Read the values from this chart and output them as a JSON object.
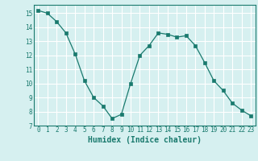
{
  "x": [
    0,
    1,
    2,
    3,
    4,
    5,
    6,
    7,
    8,
    9,
    10,
    11,
    12,
    13,
    14,
    15,
    16,
    17,
    18,
    19,
    20,
    21,
    22,
    23
  ],
  "y": [
    15.2,
    15.0,
    14.4,
    13.6,
    12.1,
    10.2,
    9.0,
    8.4,
    7.5,
    7.8,
    10.0,
    12.0,
    12.7,
    13.6,
    13.5,
    13.3,
    13.4,
    12.7,
    11.5,
    10.2,
    9.5,
    8.6,
    8.1,
    7.7
  ],
  "line_color": "#1a7a6e",
  "marker": "s",
  "marker_size": 2.2,
  "bg_color": "#d6f0f0",
  "grid_color": "#ffffff",
  "xlabel": "Humidex (Indice chaleur)",
  "xlim": [
    -0.5,
    23.5
  ],
  "ylim": [
    7,
    15.6
  ],
  "yticks": [
    7,
    8,
    9,
    10,
    11,
    12,
    13,
    14,
    15
  ],
  "xticks": [
    0,
    1,
    2,
    3,
    4,
    5,
    6,
    7,
    8,
    9,
    10,
    11,
    12,
    13,
    14,
    15,
    16,
    17,
    18,
    19,
    20,
    21,
    22,
    23
  ],
  "tick_fontsize": 5.5,
  "label_fontsize": 7.0
}
